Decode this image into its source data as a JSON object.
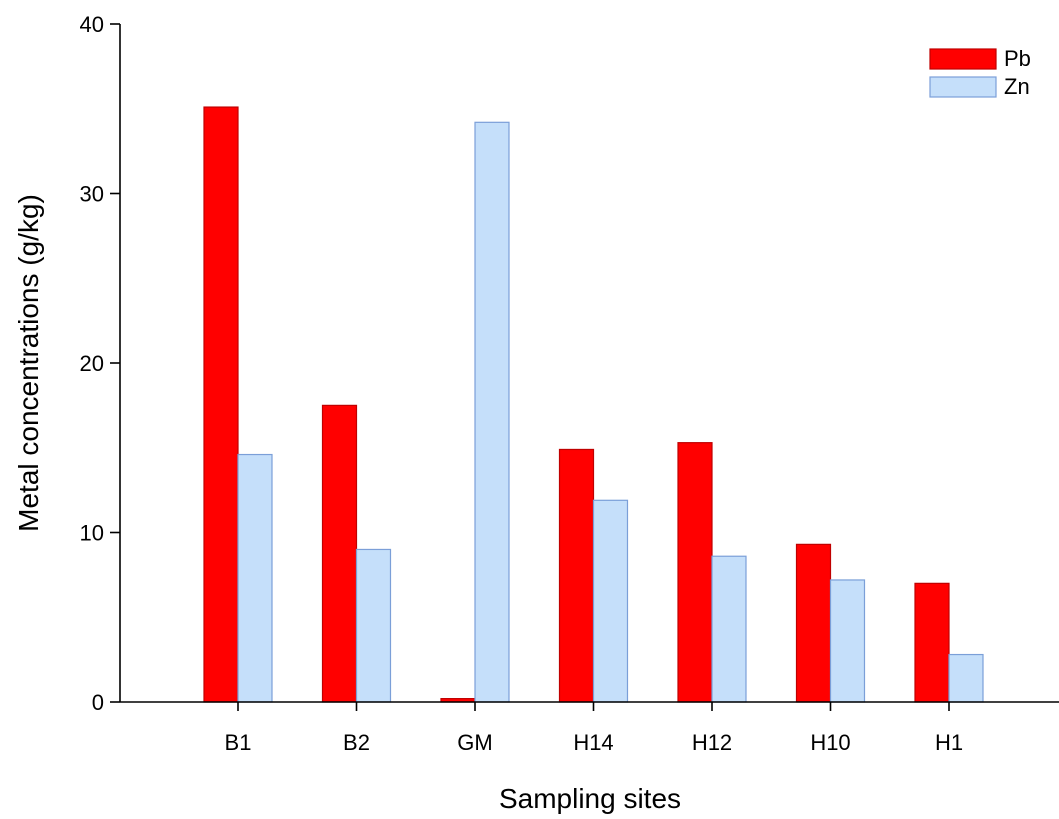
{
  "chart_data": {
    "type": "bar",
    "title": "",
    "xlabel": "Sampling sites",
    "ylabel": "Metal concentrations (g/kg)",
    "ylim": [
      0,
      40
    ],
    "yticks": [
      "0",
      "10",
      "20",
      "30",
      "40"
    ],
    "categories": [
      "B1",
      "B2",
      "GM",
      "H14",
      "H12",
      "H10",
      "H1"
    ],
    "series": [
      {
        "name": "Pb",
        "color": "#ff0000",
        "stroke": "#c00000",
        "values": [
          35.1,
          17.5,
          0.2,
          14.9,
          15.3,
          9.3,
          7.0
        ]
      },
      {
        "name": "Zn",
        "color": "#c5dffa",
        "stroke": "#7b9fd8",
        "values": [
          14.6,
          9.0,
          34.2,
          11.9,
          8.6,
          7.2,
          2.8
        ]
      }
    ],
    "legend_position": "top-right",
    "grid": false
  }
}
